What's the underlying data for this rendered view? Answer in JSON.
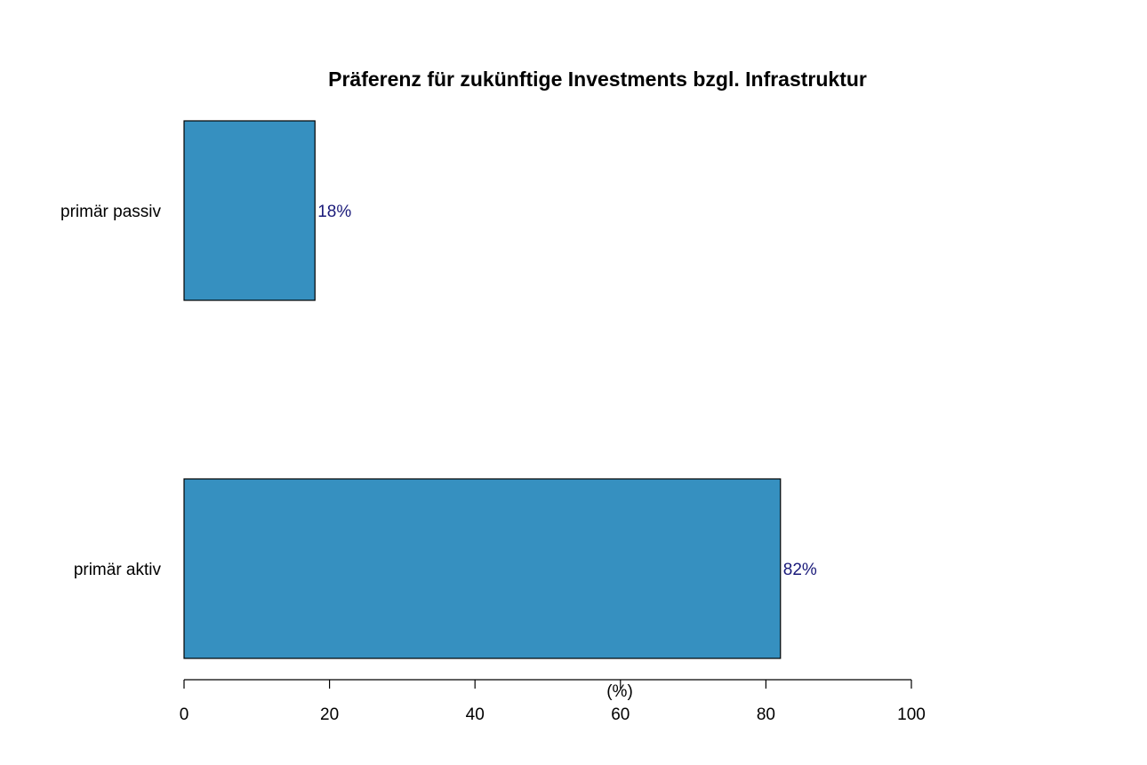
{
  "chart_data": {
    "type": "bar",
    "orientation": "horizontal",
    "title": "Präferenz für zukünftige Investments bzgl. Infrastruktur",
    "xlabel": "(%)",
    "ylabel": "",
    "categories": [
      "primär passiv",
      "primär aktiv"
    ],
    "values": [
      18,
      82
    ],
    "value_labels": [
      "18%",
      "82%"
    ],
    "xlim": [
      0,
      100
    ],
    "xticks": [
      0,
      20,
      40,
      60,
      80,
      100
    ],
    "xtick_labels": [
      "0",
      "20",
      "40",
      "60",
      "80",
      "100"
    ],
    "grid": false,
    "legend": "none",
    "colors": {
      "bar_fill": "#3690c0",
      "bar_stroke": "#000000",
      "data_label": "#1a1a7a",
      "axis": "#000000"
    }
  }
}
